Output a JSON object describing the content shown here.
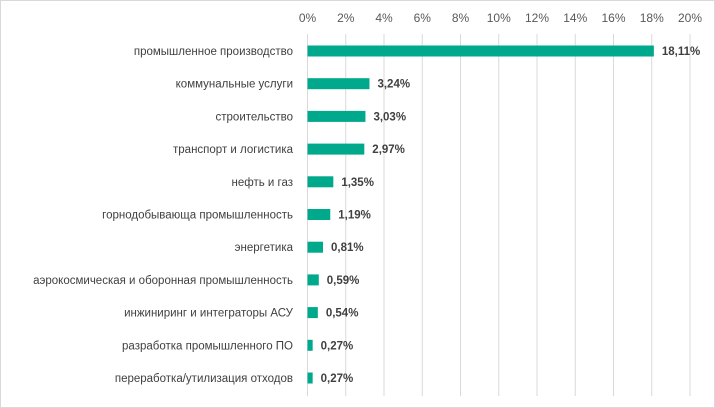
{
  "chart_data": {
    "type": "bar",
    "orientation": "horizontal",
    "title": "",
    "xlabel": "",
    "ylabel": "",
    "xlim": [
      0,
      20
    ],
    "x_axis_position": "top",
    "grid": true,
    "tick_labels": [
      "0%",
      "2%",
      "4%",
      "6%",
      "8%",
      "10%",
      "12%",
      "14%",
      "16%",
      "18%",
      "20%"
    ],
    "tick_values": [
      0,
      2,
      4,
      6,
      8,
      10,
      12,
      14,
      16,
      18,
      20
    ],
    "categories": [
      "промышленное  производство",
      "коммунальные  услуги",
      "строительство",
      "транспорт  и  логистика",
      "нефть и газ",
      "горнодобывающа  промышленность",
      "энергетика",
      "аэрокосмическая  и оборонная  промышленность",
      "инжиниринг  и интеграторы АСУ",
      "разработка  промышленного  ПО",
      "переработка/утилизация  отходов"
    ],
    "values": [
      18.11,
      3.24,
      3.03,
      2.97,
      1.35,
      1.19,
      0.81,
      0.59,
      0.54,
      0.27,
      0.27
    ],
    "data_labels": [
      "18,11%",
      "3,24%",
      "3,03%",
      "2,97%",
      "1,35%",
      "1,19%",
      "0,81%",
      "0,59%",
      "0,54%",
      "0,27%",
      "0,27%"
    ],
    "legend": "none",
    "colors": {
      "bar": "#00a88c",
      "grid": "#d9d9d9",
      "text": "#404040"
    }
  }
}
